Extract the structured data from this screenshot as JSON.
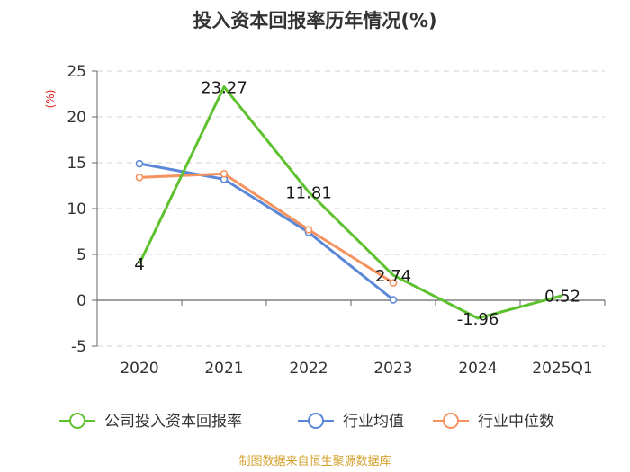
{
  "chart_data": {
    "type": "line",
    "title": "投入资本回报率历年情况(%)",
    "ylabel": "(%)",
    "xlabel": "",
    "categories": [
      "2020",
      "2021",
      "2022",
      "2023",
      "2024",
      "2025Q1"
    ],
    "ylim": [
      -5,
      25
    ],
    "yticks": [
      25,
      20,
      15,
      10,
      5,
      0,
      -5
    ],
    "grid": true,
    "legend_position": "bottom",
    "series": [
      {
        "name": "公司投入资本回报率",
        "color": "#5ec12e",
        "values": [
          4,
          23.27,
          11.81,
          2.74,
          -1.96,
          0.52
        ],
        "labels": [
          "4",
          "23.27",
          "11.81",
          "2.74",
          "-1.96",
          "0.52"
        ]
      },
      {
        "name": "行业均值",
        "color": "#5b87d8",
        "values": [
          14.9,
          13.2,
          7.4,
          0.05,
          null,
          null
        ]
      },
      {
        "name": "行业中位数",
        "color": "#f4935f",
        "values": [
          13.4,
          13.8,
          7.7,
          1.9,
          null,
          null
        ]
      }
    ]
  },
  "source": "制图数据来自恒生聚源数据库"
}
